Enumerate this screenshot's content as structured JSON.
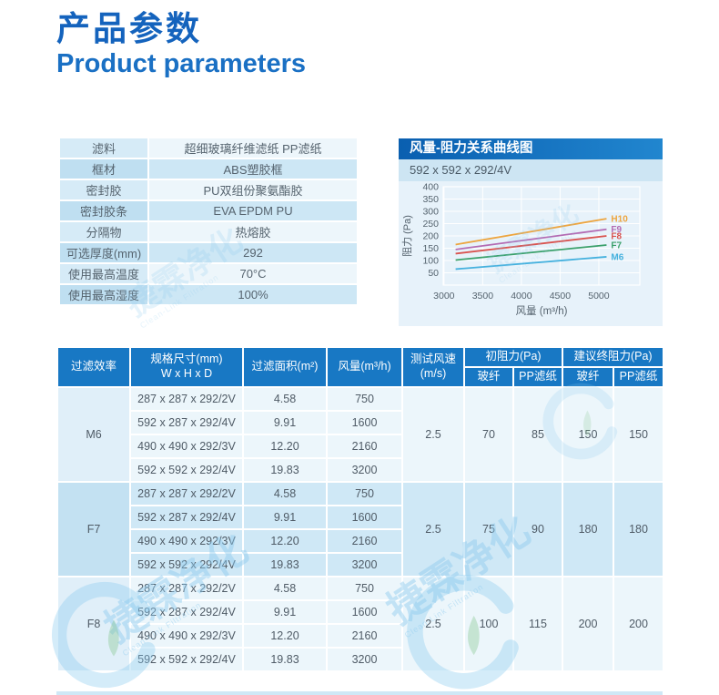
{
  "page": {
    "title_zh": "产品参数",
    "title_en": "Product parameters"
  },
  "colors": {
    "accent_blue": "#1463bd",
    "table_header_blue": "#1878c4",
    "panel_light_blue": "#e7f2fa",
    "group_dark_blue": "#cfe8f6"
  },
  "specs": {
    "rows": [
      {
        "label": "滤料",
        "value": "超细玻璃纤维滤纸  PP滤纸"
      },
      {
        "label": "框材",
        "value": "ABS塑胶框"
      },
      {
        "label": "密封胶",
        "value": "PU双组份聚氨酯胶"
      },
      {
        "label": "密封胶条",
        "value": "EVA  EPDM  PU"
      },
      {
        "label": "分隔物",
        "value": "热熔胶"
      },
      {
        "label": "可选厚度(mm)",
        "value": "292"
      },
      {
        "label": "使用最高温度",
        "value": "70°C"
      },
      {
        "label": "使用最高湿度",
        "value": "100%"
      }
    ]
  },
  "chart": {
    "title": "风量-阻力关系曲线图",
    "subtitle": "592 x 592 x 292/4V"
  },
  "chart_data": {
    "type": "line",
    "title": "风量-阻力关系曲线图",
    "subtitle": "592 x 592 x 292/4V",
    "xlabel": "风量 (m³/h)",
    "ylabel": "阻力 (Pa)",
    "xlim": [
      2990,
      5530
    ],
    "ylim": [
      0,
      400
    ],
    "x_ticks": [
      3000,
      3500,
      4000,
      4500,
      5000
    ],
    "y_ticks": [
      50,
      100,
      150,
      200,
      250,
      300,
      350,
      400
    ],
    "grid": true,
    "legend_position": "line-end-labels",
    "series": [
      {
        "name": "H10",
        "color": "#eda53f",
        "x": [
          3150,
          5100
        ],
        "y": [
          165,
          270
        ]
      },
      {
        "name": "F9",
        "color": "#b36bb3",
        "x": [
          3150,
          5100
        ],
        "y": [
          145,
          227
        ]
      },
      {
        "name": "F8",
        "color": "#d9534f",
        "x": [
          3150,
          5100
        ],
        "y": [
          128,
          200
        ]
      },
      {
        "name": "F7",
        "color": "#3aa06a",
        "x": [
          3150,
          5100
        ],
        "y": [
          102,
          163
        ]
      },
      {
        "name": "M6",
        "color": "#45b1de",
        "x": [
          3150,
          5100
        ],
        "y": [
          65,
          115
        ]
      }
    ]
  },
  "table": {
    "headers": {
      "efficiency": "过滤效率",
      "size_1": "规格尺寸(mm)",
      "size_2": "W x H x D",
      "area": "过滤面积(m²)",
      "airflow": "风量(m³/h)",
      "speed_1": "测试风速",
      "speed_2": "(m/s)",
      "initial": "初阻力(Pa)",
      "final": "建议终阻力(Pa)",
      "glass": "玻纤",
      "pp": "PP滤纸"
    },
    "groups": [
      {
        "efficiency": "M6",
        "rows": [
          {
            "size": "287 x 287 x 292/2V",
            "area": "4.58",
            "airflow": "750"
          },
          {
            "size": "592 x 287 x 292/4V",
            "area": "9.91",
            "airflow": "1600"
          },
          {
            "size": "490 x 490 x 292/3V",
            "area": "12.20",
            "airflow": "2160"
          },
          {
            "size": "592 x 592 x 292/4V",
            "area": "19.83",
            "airflow": "3200"
          }
        ],
        "speed": "2.5",
        "initial": {
          "glass": "70",
          "pp": "85"
        },
        "final": {
          "glass": "150",
          "pp": "150"
        }
      },
      {
        "efficiency": "F7",
        "rows": [
          {
            "size": "287 x 287 x 292/2V",
            "area": "4.58",
            "airflow": "750"
          },
          {
            "size": "592 x 287 x 292/4V",
            "area": "9.91",
            "airflow": "1600"
          },
          {
            "size": "490 x 490 x 292/3V",
            "area": "12.20",
            "airflow": "2160"
          },
          {
            "size": "592 x 592 x 292/4V",
            "area": "19.83",
            "airflow": "3200"
          }
        ],
        "speed": "2.5",
        "initial": {
          "glass": "75",
          "pp": "90"
        },
        "final": {
          "glass": "180",
          "pp": "180"
        }
      },
      {
        "efficiency": "F8",
        "rows": [
          {
            "size": "287 x 287 x 292/2V",
            "area": "4.58",
            "airflow": "750"
          },
          {
            "size": "592 x 287 x 292/4V",
            "area": "9.91",
            "airflow": "1600"
          },
          {
            "size": "490 x 490 x 292/3V",
            "area": "12.20",
            "airflow": "2160"
          },
          {
            "size": "592 x 592 x 292/4V",
            "area": "19.83",
            "airflow": "3200"
          }
        ],
        "speed": "2.5",
        "initial": {
          "glass": "100",
          "pp": "115"
        },
        "final": {
          "glass": "200",
          "pp": "200"
        }
      }
    ]
  },
  "watermark": {
    "zh": "捷霖净化",
    "en": "Clean-Link Filtration"
  }
}
